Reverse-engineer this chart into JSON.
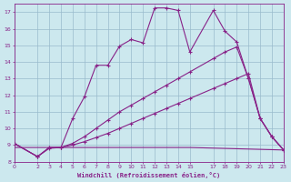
{
  "xlabel": "Windchill (Refroidissement éolien,°C)",
  "bg_color": "#cce8ee",
  "grid_color": "#99bbcc",
  "line_color": "#882288",
  "xlim": [
    0,
    23
  ],
  "ylim": [
    8,
    17.5
  ],
  "xticks": [
    0,
    2,
    3,
    4,
    5,
    6,
    7,
    8,
    9,
    10,
    11,
    12,
    13,
    14,
    15,
    17,
    18,
    19,
    20,
    21,
    22,
    23
  ],
  "yticks": [
    8,
    9,
    10,
    11,
    12,
    13,
    14,
    15,
    16,
    17
  ],
  "line1_x": [
    0,
    2,
    3,
    4,
    5,
    6,
    7,
    8,
    9,
    10,
    11,
    12,
    13,
    14,
    15,
    17,
    18,
    19,
    20,
    21,
    22,
    23
  ],
  "line1_y": [
    9.1,
    8.3,
    8.8,
    8.85,
    10.6,
    11.9,
    13.8,
    13.8,
    14.95,
    15.35,
    15.15,
    17.25,
    17.25,
    17.1,
    14.6,
    17.1,
    15.85,
    15.2,
    13.0,
    10.6,
    9.5,
    8.7
  ],
  "line2_x": [
    0,
    2,
    3,
    4,
    5,
    6,
    7,
    8,
    9,
    10,
    11,
    12,
    13,
    14,
    15,
    17,
    18,
    19,
    20,
    21,
    22,
    23
  ],
  "line2_y": [
    9.1,
    8.3,
    8.85,
    8.85,
    9.1,
    9.5,
    10.0,
    10.5,
    11.0,
    11.4,
    11.8,
    12.2,
    12.6,
    13.0,
    13.4,
    14.2,
    14.6,
    14.9,
    13.0,
    10.6,
    9.5,
    8.7
  ],
  "line3_x": [
    0,
    2,
    3,
    4,
    5,
    6,
    7,
    8,
    9,
    10,
    11,
    12,
    13,
    14,
    15,
    17,
    18,
    19,
    20,
    21,
    22,
    23
  ],
  "line3_y": [
    9.1,
    8.3,
    8.85,
    8.85,
    9.0,
    9.2,
    9.45,
    9.7,
    10.0,
    10.3,
    10.6,
    10.9,
    11.2,
    11.5,
    11.8,
    12.4,
    12.7,
    13.0,
    13.3,
    10.6,
    9.5,
    8.7
  ],
  "line4_x": [
    0,
    4,
    15,
    23
  ],
  "line4_y": [
    8.85,
    8.85,
    8.85,
    8.7
  ],
  "marker_size": 3,
  "linewidth": 0.8
}
